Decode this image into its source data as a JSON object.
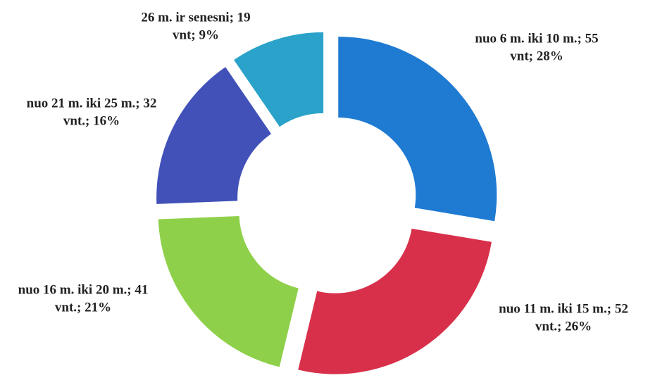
{
  "chart_data": {
    "type": "pie",
    "categories": [
      "nuo 6 m. iki 10 m.;",
      "nuo 11 m. iki 15 m.;",
      "nuo 16 m. iki 20 m.;",
      "nuo 21 m. iki 25 m.;",
      "26 m. ir senesni;"
    ],
    "values": [
      55,
      52,
      41,
      32,
      19
    ],
    "value_labels": [
      "55 vnt; 28%",
      "52 vnt.; 26%",
      "41 vnt.; 21%",
      "32 vnt.; 16%",
      "19 vnt; 9%"
    ],
    "colors": [
      "#1f7ad2",
      "#d8304a",
      "#8fd04a",
      "#4151b8",
      "#2aa2c9"
    ]
  }
}
